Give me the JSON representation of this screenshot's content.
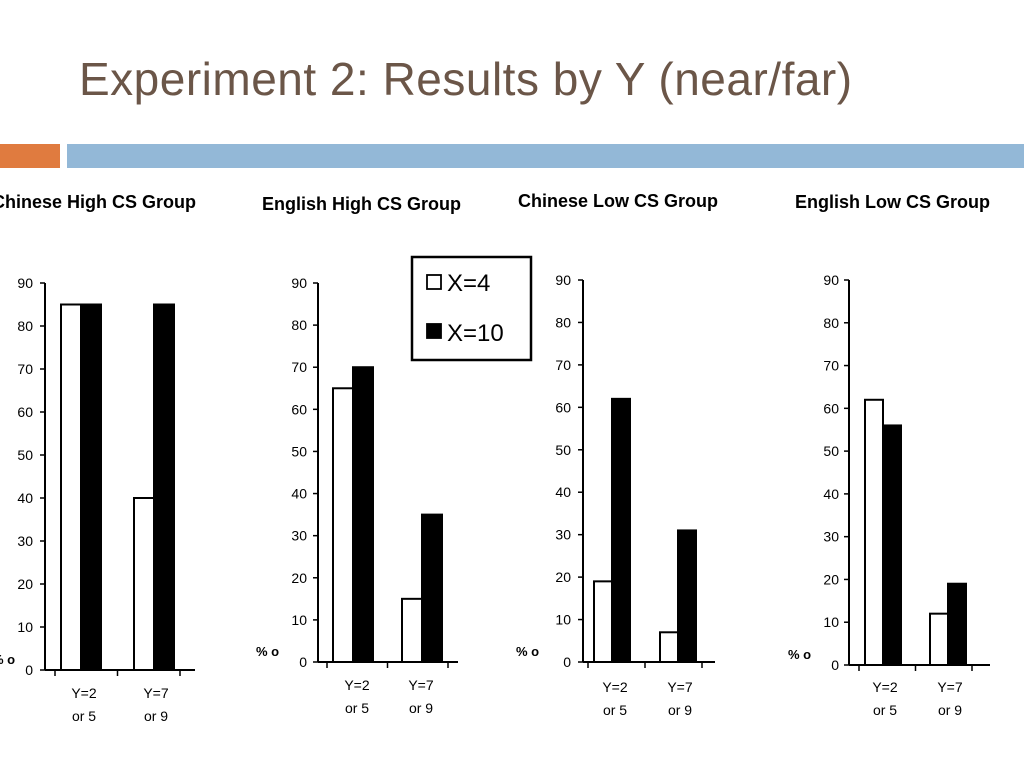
{
  "title": "Experiment 2: Results by Y (near/far)",
  "colors": {
    "title_text": "#6b5648",
    "accent_orange": "#e07b3f",
    "accent_blue": "#93b8d7",
    "bar_outline": "#000000",
    "series_fill": [
      "#ffffff",
      "#000000"
    ]
  },
  "legend": {
    "items": [
      "X=4",
      "X=10"
    ]
  },
  "chart_data": [
    {
      "type": "bar",
      "title": "Chinese High CS Group",
      "ylabel": "% o",
      "ylim": [
        0,
        90
      ],
      "yticks": [
        0,
        10,
        20,
        30,
        40,
        50,
        60,
        70,
        80,
        90
      ],
      "categories": [
        [
          "Y=2",
          "or 5"
        ],
        [
          "Y=7",
          "or 9"
        ]
      ],
      "series": [
        {
          "name": "X=4",
          "values": [
            85,
            40
          ]
        },
        {
          "name": "X=10",
          "values": [
            85,
            85
          ]
        }
      ]
    },
    {
      "type": "bar",
      "title": "English High CS Group",
      "ylabel": "% o",
      "ylim": [
        0,
        90
      ],
      "yticks": [
        0,
        10,
        20,
        30,
        40,
        50,
        60,
        70,
        80,
        90
      ],
      "categories": [
        [
          "Y=2",
          "or 5"
        ],
        [
          "Y=7",
          "or 9"
        ]
      ],
      "series": [
        {
          "name": "X=4",
          "values": [
            65,
            15
          ]
        },
        {
          "name": "X=10",
          "values": [
            70,
            35
          ]
        }
      ]
    },
    {
      "type": "bar",
      "title": "Chinese Low CS Group",
      "ylabel": "% o",
      "ylim": [
        0,
        90
      ],
      "yticks": [
        0,
        10,
        20,
        30,
        40,
        50,
        60,
        70,
        80,
        90
      ],
      "categories": [
        [
          "Y=2",
          "or 5"
        ],
        [
          "Y=7",
          "or 9"
        ]
      ],
      "series": [
        {
          "name": "X=4",
          "values": [
            19,
            7
          ]
        },
        {
          "name": "X=10",
          "values": [
            62,
            31
          ]
        }
      ]
    },
    {
      "type": "bar",
      "title": "English Low CS Group",
      "ylabel": "% o",
      "ylim": [
        0,
        90
      ],
      "yticks": [
        0,
        10,
        20,
        30,
        40,
        50,
        60,
        70,
        80,
        90
      ],
      "categories": [
        [
          "Y=2",
          "or 5"
        ],
        [
          "Y=7",
          "or 9"
        ]
      ],
      "series": [
        {
          "name": "X=4",
          "values": [
            62,
            12
          ]
        },
        {
          "name": "X=10",
          "values": [
            56,
            19
          ]
        }
      ]
    }
  ]
}
